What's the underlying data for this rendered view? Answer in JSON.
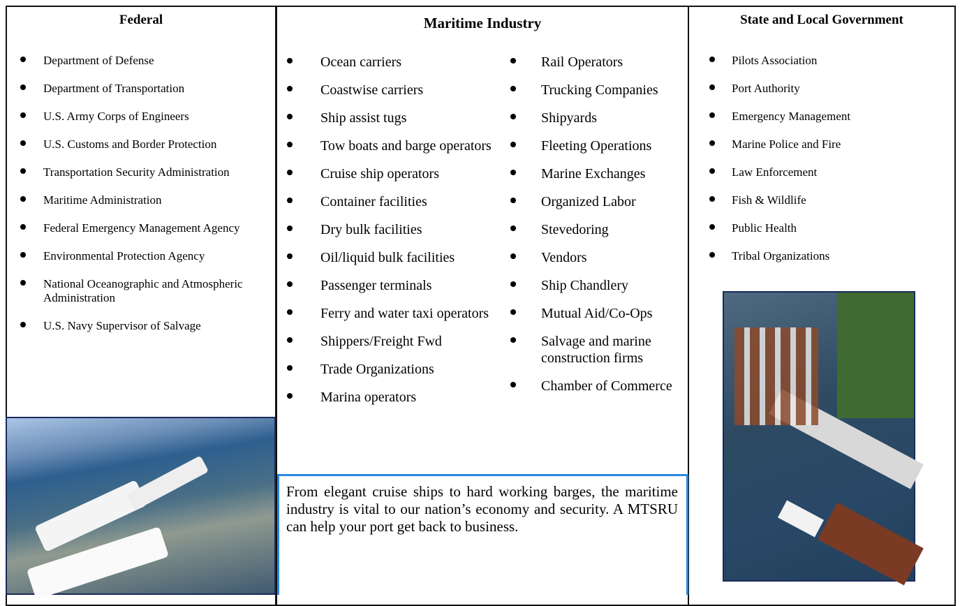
{
  "federal": {
    "title": "Federal",
    "items": [
      "Department of Defense",
      "Department of Transportation",
      "U.S. Army Corps of Engineers",
      "U.S. Customs and Border Protection",
      "Transportation Security Administration",
      "Maritime Administration",
      "Federal Emergency Management Agency",
      "Environmental Protection Agency",
      "National Oceanographic and Atmospheric Administration",
      "U.S. Navy Supervisor of Salvage"
    ]
  },
  "maritime": {
    "title": "Maritime Industry",
    "column1": [
      "Ocean carriers",
      "Coastwise carriers",
      "Ship assist tugs",
      "Tow boats and barge operators",
      "Cruise ship operators",
      "Container facilities",
      "Dry bulk facilities",
      "Oil/liquid bulk facilities",
      "Passenger terminals",
      "Ferry and water taxi operators",
      "Shippers/Freight Fwd",
      "Trade Organizations",
      "Marina operators"
    ],
    "column2": [
      "Rail Operators",
      "Trucking Companies",
      "Shipyards",
      "Fleeting Operations",
      "Marine Exchanges",
      "Organized Labor",
      "Stevedoring",
      "Vendors",
      "Ship Chandlery",
      "Mutual Aid/Co-Ops",
      "Salvage and marine construction firms",
      "Chamber of Commerce"
    ]
  },
  "state": {
    "title": "State and Local Government",
    "items": [
      "Pilots Association",
      "Port Authority",
      "Emergency Management",
      "Marine Police and Fire",
      "Law Enforcement",
      "Fish & Wildlife",
      "Public Health",
      "Tribal Organizations"
    ]
  },
  "callout": "From elegant cruise ships to hard working barges, the maritime industry is vital to our nation’s economy and security.  A MTSRU can help your port get back to business."
}
